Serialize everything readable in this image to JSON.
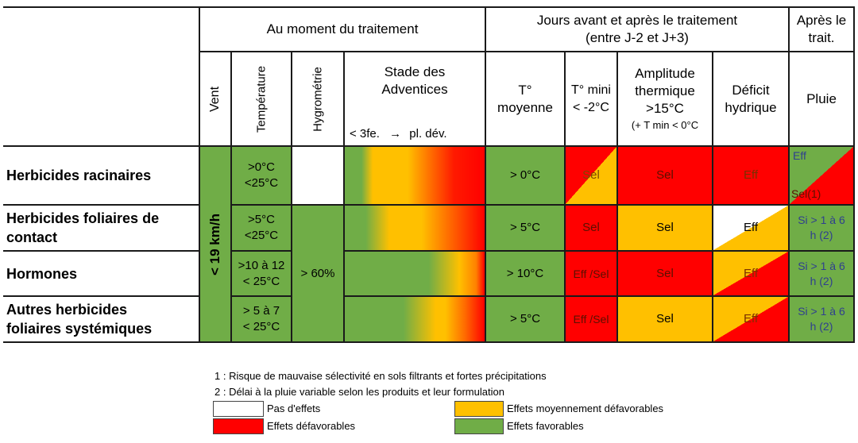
{
  "header": {
    "group1": "Au moment du traitement",
    "group2_line1": "Jours avant et après le traitement",
    "group2_line2": "(entre J-2 et J+3)",
    "group3_line1": "Après le",
    "group3_line2": "trait.",
    "col_vent": "Vent",
    "col_temperature": "Température",
    "col_hygrometrie": "Hygrométrie",
    "col_stade_line1": "Stade des",
    "col_stade_line2": "Adventices",
    "col_stade_scale_left": "< 3fe.",
    "col_stade_scale_arrow": "→",
    "col_stade_scale_right": "pl. dév.",
    "col_tmoy_line1": "T°",
    "col_tmoy_line2": "moyenne",
    "col_tmin_line1": "T° mini",
    "col_tmin_line2": "< -2°C",
    "col_ampl_line1": "Amplitude",
    "col_ampl_line2": "thermique",
    "col_ampl_line3": ">15°C",
    "col_ampl_line4": "(+ T min < 0°C",
    "col_deficit_line1": "Déficit",
    "col_deficit_line2": "hydrique",
    "col_pluie": "Pluie"
  },
  "rows": [
    {
      "label_line1": "Herbicides racinaires",
      "label_line2": "",
      "temp_line1": ">0°C",
      "temp_line2": "<25°C",
      "tmoy": "> 0°C",
      "tmin": "Sel",
      "ampl": "Sel",
      "deficit": "Eff",
      "pluie_line1": "Eff",
      "pluie_line2": "Sel(1)"
    },
    {
      "label_line1": "Herbicides foliaires de",
      "label_line2": "contact",
      "temp_line1": ">5°C",
      "temp_line2": "<25°C",
      "tmoy": "> 5°C",
      "tmin": "Sel",
      "ampl": "Sel",
      "deficit": "Eff",
      "pluie_line1": "Si > 1 à 6",
      "pluie_line2": "h (2)"
    },
    {
      "label_line1": "Hormones",
      "label_line2": "",
      "temp_line1": ">10 à 12",
      "temp_line2": "< 25°C",
      "tmoy": "> 10°C",
      "tmin": "Eff /Sel",
      "ampl": "Sel",
      "deficit": "Eff",
      "pluie_line1": "Si > 1 à 6",
      "pluie_line2": "h (2)"
    },
    {
      "label_line1": "Autres herbicides",
      "label_line2": "foliaires systémiques",
      "temp_line1": "> 5 à 7",
      "temp_line2": "< 25°C",
      "tmoy": "> 5°C",
      "tmin": "Eff /Sel",
      "ampl": "Sel",
      "deficit": "Eff",
      "pluie_line1": "Si > 1 à 6",
      "pluie_line2": "h (2)"
    }
  ],
  "merged": {
    "vent": "< 19 km/h",
    "hygro": "> 60%"
  },
  "notes": {
    "note1": "1 : Risque de mauvaise sélectivité en sols filtrants et fortes précipitations",
    "note2": "2 : Délai à la pluie variable selon les produits et leur formulation"
  },
  "legend": {
    "none": "Pas d'effets",
    "medium": "Effets moyennement défavorables",
    "bad": "Effets défavorables",
    "good": "Effets favorables"
  },
  "colors": {
    "green": "#70ad47",
    "orange": "#ffc000",
    "red": "#ff0000",
    "white": "#ffffff"
  }
}
